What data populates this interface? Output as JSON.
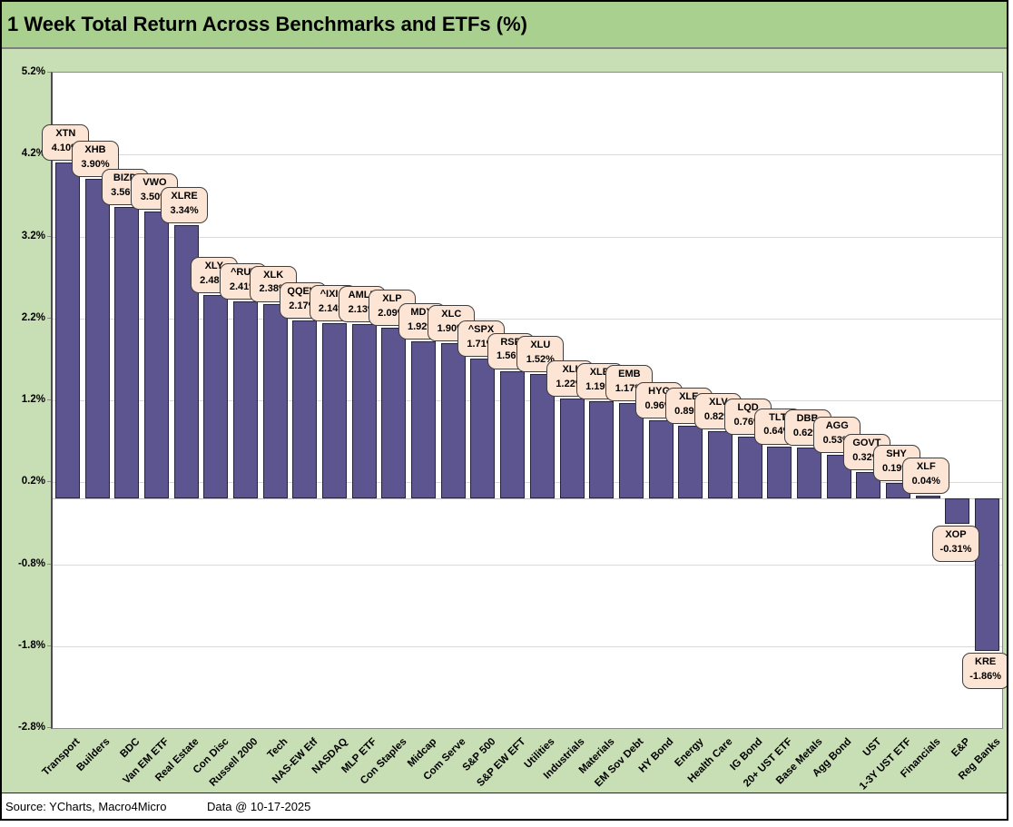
{
  "footer": {
    "source": "Source: YCharts, Macro4Micro",
    "data_date": "Data @ 10-17-2025"
  },
  "colors": {
    "title_band": "#a9d08e",
    "chart_background": "#c8deb4",
    "plot_background": "#ffffff",
    "bar_fill": "#5c5590",
    "bar_border": "#26223c",
    "callout_fill": "#fce5d5",
    "callout_border": "#3f3f3f",
    "gridline": "#d9d9d9"
  },
  "chart_data": {
    "type": "bar",
    "title": "1 Week Total Return Across Benchmarks and ETFs (%)",
    "xlabel": "",
    "ylabel": "",
    "ylim": [
      -2.8,
      5.2
    ],
    "ytick_step": 1.0,
    "yticks": [
      "5.2%",
      "4.2%",
      "3.2%",
      "2.2%",
      "1.2%",
      "0.2%",
      "-0.8%",
      "-1.8%",
      "-2.8%"
    ],
    "ytick_values": [
      5.2,
      4.2,
      3.2,
      2.2,
      1.2,
      0.2,
      -0.8,
      -1.8,
      -2.8
    ],
    "grid": true,
    "legend": false,
    "categories": [
      "Transport",
      "Builders",
      "BDC",
      "Van EM ETF",
      "Real Estate",
      "Con Disc",
      "Russell 2000",
      "Tech",
      "NAS-EW Etf",
      "NASDAQ",
      "MLP ETF",
      "Con Staples",
      "Midcap",
      "Com Serve",
      "S&P 500",
      "S&P EW EFT",
      "Utilities",
      "Industrials",
      "Materials",
      "EM Sov Debt",
      "HY Bond",
      "Energy",
      "Health Care",
      "IG Bond",
      "20+ UST ETF",
      "Base Metals",
      "Agg Bond",
      "UST",
      "1-3Y UST ETF",
      "Financials",
      "E&P",
      "Reg Banks"
    ],
    "bars": [
      {
        "ticker": "XTN",
        "value": 4.1,
        "value_label": "4.10%",
        "category": "Transport"
      },
      {
        "ticker": "XHB",
        "value": 3.9,
        "value_label": "3.90%",
        "category": "Builders"
      },
      {
        "ticker": "BIZD",
        "value": 3.56,
        "value_label": "3.56%",
        "category": "BDC"
      },
      {
        "ticker": "VWO",
        "value": 3.5,
        "value_label": "3.50%",
        "category": "Van EM ETF"
      },
      {
        "ticker": "XLRE",
        "value": 3.34,
        "value_label": "3.34%",
        "category": "Real Estate"
      },
      {
        "ticker": "XLY",
        "value": 2.48,
        "value_label": "2.48%",
        "category": "Con Disc"
      },
      {
        "ticker": "^RUT",
        "value": 2.41,
        "value_label": "2.41%",
        "category": "Russell 2000"
      },
      {
        "ticker": "XLK",
        "value": 2.38,
        "value_label": "2.38%",
        "category": "Tech"
      },
      {
        "ticker": "QQEW",
        "value": 2.17,
        "value_label": "2.17%",
        "category": "NAS-EW Etf"
      },
      {
        "ticker": "^IXIC",
        "value": 2.14,
        "value_label": "2.14%",
        "category": "NASDAQ"
      },
      {
        "ticker": "AMLP",
        "value": 2.13,
        "value_label": "2.13%",
        "category": "MLP ETF"
      },
      {
        "ticker": "XLP",
        "value": 2.09,
        "value_label": "2.09%",
        "category": "Con Staples"
      },
      {
        "ticker": "MDY",
        "value": 1.92,
        "value_label": "1.92%",
        "category": "Midcap"
      },
      {
        "ticker": "XLC",
        "value": 1.9,
        "value_label": "1.90%",
        "category": "Com Serve"
      },
      {
        "ticker": "^SPX",
        "value": 1.71,
        "value_label": "1.71%",
        "category": "S&P 500"
      },
      {
        "ticker": "RSP",
        "value": 1.56,
        "value_label": "1.56%",
        "category": "S&P EW EFT"
      },
      {
        "ticker": "XLU",
        "value": 1.52,
        "value_label": "1.52%",
        "category": "Utilities"
      },
      {
        "ticker": "XLI",
        "value": 1.22,
        "value_label": "1.22%",
        "category": "Industrials"
      },
      {
        "ticker": "XLB",
        "value": 1.19,
        "value_label": "1.19%",
        "category": "Materials"
      },
      {
        "ticker": "EMB",
        "value": 1.17,
        "value_label": "1.17%",
        "category": "EM Sov Debt"
      },
      {
        "ticker": "HYG",
        "value": 0.96,
        "value_label": "0.96%",
        "category": "HY Bond"
      },
      {
        "ticker": "XLE",
        "value": 0.89,
        "value_label": "0.89%",
        "category": "Energy"
      },
      {
        "ticker": "XLV",
        "value": 0.82,
        "value_label": "0.82%",
        "category": "Health Care"
      },
      {
        "ticker": "LQD",
        "value": 0.76,
        "value_label": "0.76%",
        "category": "IG Bond"
      },
      {
        "ticker": "TLT",
        "value": 0.64,
        "value_label": "0.64%",
        "category": "20+ UST ETF"
      },
      {
        "ticker": "DBB",
        "value": 0.62,
        "value_label": "0.62%",
        "category": "Base Metals"
      },
      {
        "ticker": "AGG",
        "value": 0.53,
        "value_label": "0.53%",
        "category": "Agg Bond"
      },
      {
        "ticker": "GOVT",
        "value": 0.32,
        "value_label": "0.32%",
        "category": "UST"
      },
      {
        "ticker": "SHY",
        "value": 0.19,
        "value_label": "0.19%",
        "category": "1-3Y UST ETF"
      },
      {
        "ticker": "XLF",
        "value": 0.04,
        "value_label": "0.04%",
        "category": "Financials"
      },
      {
        "ticker": "XOP",
        "value": -0.31,
        "value_label": "-0.31%",
        "category": "E&P"
      },
      {
        "ticker": "KRE",
        "value": -1.86,
        "value_label": "-1.86%",
        "category": "Reg Banks"
      }
    ]
  }
}
